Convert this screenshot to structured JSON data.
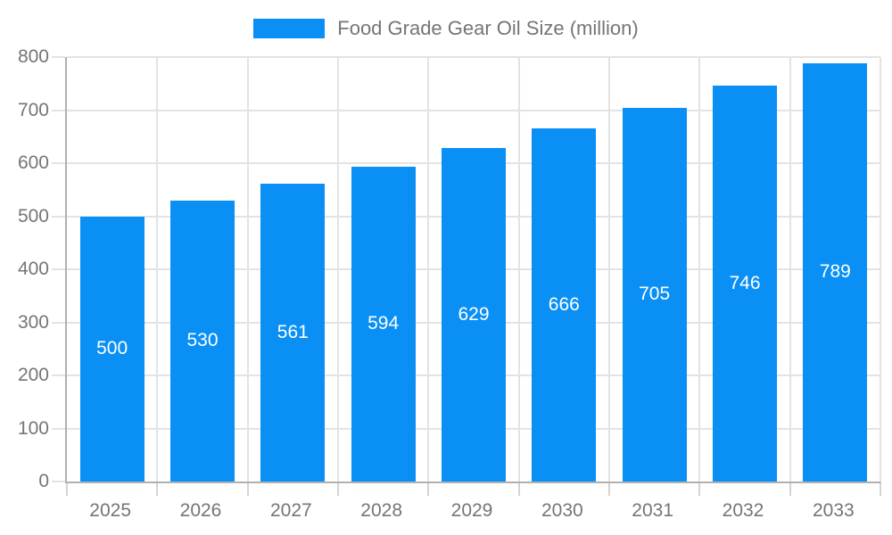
{
  "chart_data": {
    "type": "bar",
    "title": "Food Grade Gear Oil Size (million)",
    "categories": [
      "2025",
      "2026",
      "2027",
      "2028",
      "2029",
      "2030",
      "2031",
      "2032",
      "2033"
    ],
    "values": [
      500,
      530,
      561,
      594,
      629,
      666,
      705,
      746,
      789
    ],
    "xlabel": "",
    "ylabel": "",
    "ylim": [
      0,
      800
    ],
    "ytick_step": 100,
    "grid": true,
    "legend_position": "top",
    "value_labels": "centered-in-bar"
  },
  "colors": {
    "bar": "#0a90f5",
    "axis_line": "#b0b0b0",
    "gridline": "#e3e3e3",
    "axis_text": "#757575",
    "value_label_text": "#ffffff",
    "background": "#ffffff"
  }
}
